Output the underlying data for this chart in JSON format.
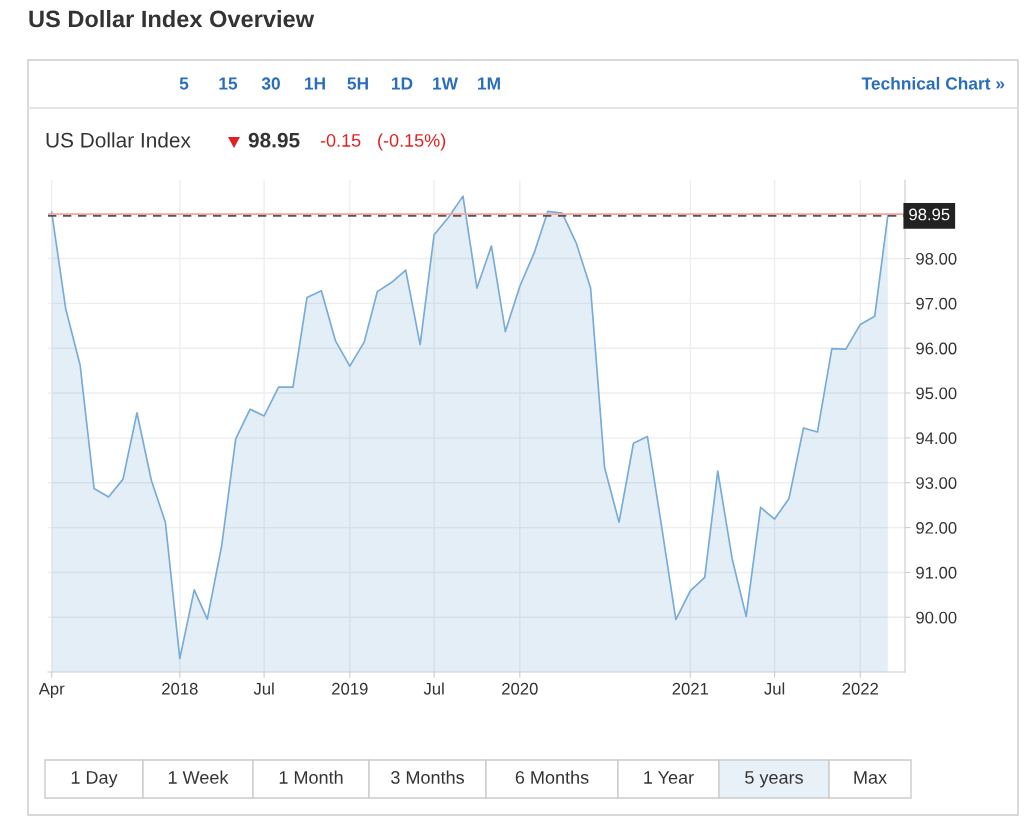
{
  "chart_data": {
    "type": "area",
    "title": "US Dollar Index Overview",
    "subtitle": "US Dollar Index",
    "x": [
      "2017-04",
      "2017-05",
      "2017-06",
      "2017-07",
      "2017-08",
      "2017-09",
      "2017-10",
      "2017-11",
      "2017-12",
      "2018-01",
      "2018-02",
      "2018-03",
      "2018-04",
      "2018-05",
      "2018-06",
      "2018-07",
      "2018-08",
      "2018-09",
      "2018-10",
      "2018-11",
      "2018-12",
      "2019-01",
      "2019-02",
      "2019-03",
      "2019-04",
      "2019-05",
      "2019-06",
      "2019-07",
      "2019-08",
      "2019-09",
      "2019-10",
      "2019-11",
      "2019-12",
      "2020-01",
      "2020-02",
      "2020-03",
      "2020-04",
      "2020-05",
      "2020-06",
      "2020-07",
      "2020-08",
      "2020-09",
      "2020-10",
      "2020-11",
      "2020-12",
      "2021-01",
      "2021-02",
      "2021-03",
      "2021-04",
      "2021-05",
      "2021-06",
      "2021-07",
      "2021-08",
      "2021-09",
      "2021-10",
      "2021-11",
      "2021-12",
      "2022-01",
      "2022-02",
      "2022-03"
    ],
    "series": [
      {
        "color": "#78acd8",
        "values": [
          99.03,
          96.88,
          95.62,
          92.87,
          92.68,
          93.08,
          94.56,
          93.05,
          92.12,
          89.08,
          90.61,
          89.96,
          91.6,
          93.98,
          94.64,
          94.49,
          95.13,
          95.13,
          97.13,
          97.28,
          96.17,
          95.6,
          96.14,
          97.26,
          97.47,
          97.74,
          96.08,
          98.53,
          98.92,
          99.39,
          97.34,
          98.28,
          96.37,
          97.38,
          98.13,
          99.05,
          99.01,
          98.35,
          97.34,
          93.34,
          92.12,
          93.88,
          94.03,
          91.99,
          89.95,
          90.59,
          90.89,
          93.26,
          91.3,
          90.02,
          92.45,
          92.19,
          92.65,
          94.22,
          94.13,
          95.99,
          95.98,
          96.53,
          96.71,
          98.95
        ]
      }
    ],
    "xlim": [
      "2017-03-24",
      "2022-04-07"
    ],
    "xticks": [
      {
        "value": "2017-04",
        "label": "Apr"
      },
      {
        "value": "2018-01",
        "label": "2018"
      },
      {
        "value": "2018-07",
        "label": "Jul"
      },
      {
        "value": "2019-01",
        "label": "2019"
      },
      {
        "value": "2019-07",
        "label": "Jul"
      },
      {
        "value": "2020-01",
        "label": "2020"
      },
      {
        "value": "2021-01",
        "label": "2021"
      },
      {
        "value": "2021-07",
        "label": "Jul"
      },
      {
        "value": "2022-01",
        "label": "2022"
      }
    ],
    "ylim": [
      88.78,
      99.75
    ],
    "yticks": [
      {
        "value": 90,
        "label": "90.00"
      },
      {
        "value": 91,
        "label": "91.00"
      },
      {
        "value": 92,
        "label": "92.00"
      },
      {
        "value": 93,
        "label": "93.00"
      },
      {
        "value": 94,
        "label": "94.00"
      },
      {
        "value": 95,
        "label": "95.00"
      },
      {
        "value": 96,
        "label": "96.00"
      },
      {
        "value": 97,
        "label": "97.00"
      },
      {
        "value": 98,
        "label": "98.00"
      }
    ],
    "ref_lines": [
      {
        "axis": "y",
        "value": 98.99,
        "color": "#f4a3a3",
        "line_style": "solid"
      },
      {
        "axis": "y",
        "value": 98.95,
        "label": "98.95",
        "color": "#555555",
        "line_style": "dashed"
      }
    ],
    "grid": true,
    "annotations": [
      "98.95",
      "-0.15",
      "(-0.15%)",
      "5",
      "15",
      "30",
      "1H",
      "5H",
      "1D",
      "1W",
      "1M",
      "Technical Chart »",
      "1 Day",
      "1 Week",
      "1 Month",
      "3 Months",
      "6 Months",
      "1 Year",
      "5 years",
      "Max"
    ]
  }
}
